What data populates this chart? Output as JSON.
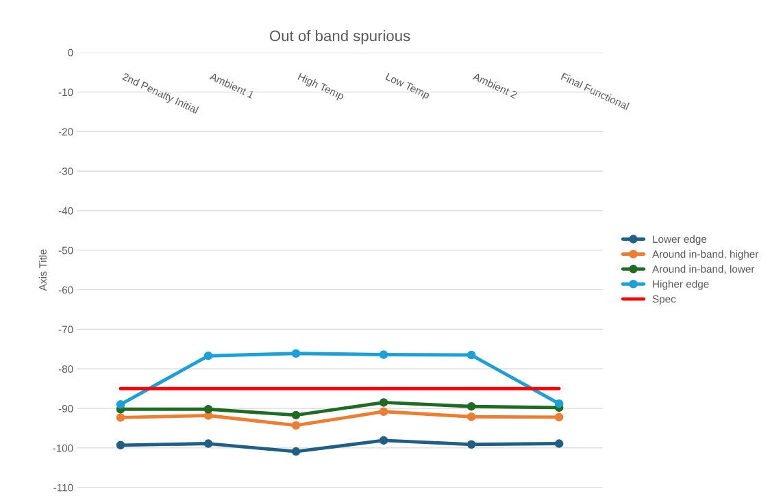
{
  "chart_data": {
    "type": "line",
    "title": "Out of band spurious",
    "ylabel": "Axis Title",
    "categories": [
      "2nd Penalty Initial",
      "Ambient 1",
      "High Temp",
      "Low Temp",
      "Ambient 2",
      "Final Functional"
    ],
    "series": [
      {
        "name": "Lower edge",
        "color": "#1f5f85",
        "values": [
          -99.3,
          -98.9,
          -100.9,
          -98.1,
          -99.1,
          -98.9
        ]
      },
      {
        "name": "Around in-band, higher",
        "color": "#ed7d31",
        "values": [
          -92.3,
          -91.8,
          -94.3,
          -90.8,
          -92.1,
          -92.2
        ]
      },
      {
        "name": "Around in-band, lower",
        "color": "#1e6b24",
        "values": [
          -90.2,
          -90.2,
          -91.7,
          -88.5,
          -89.5,
          -89.8
        ]
      },
      {
        "name": "Higher edge",
        "color": "#1ca0d8",
        "values": [
          -89.0,
          -76.7,
          -76.1,
          -76.4,
          -76.5,
          -88.8
        ]
      },
      {
        "name": "Spec",
        "color": "#ff0000",
        "marker": "none",
        "values": [
          -85,
          -85,
          -85,
          -85,
          -85,
          -85
        ]
      }
    ],
    "ylim": [
      -110,
      0
    ],
    "yticks": [
      -110,
      -100,
      -90,
      -80,
      -70,
      -60,
      -50,
      -40,
      -30,
      -20,
      -10,
      0
    ],
    "grid": "y",
    "legend": "right",
    "marker": "circle",
    "line_style": "solid"
  }
}
